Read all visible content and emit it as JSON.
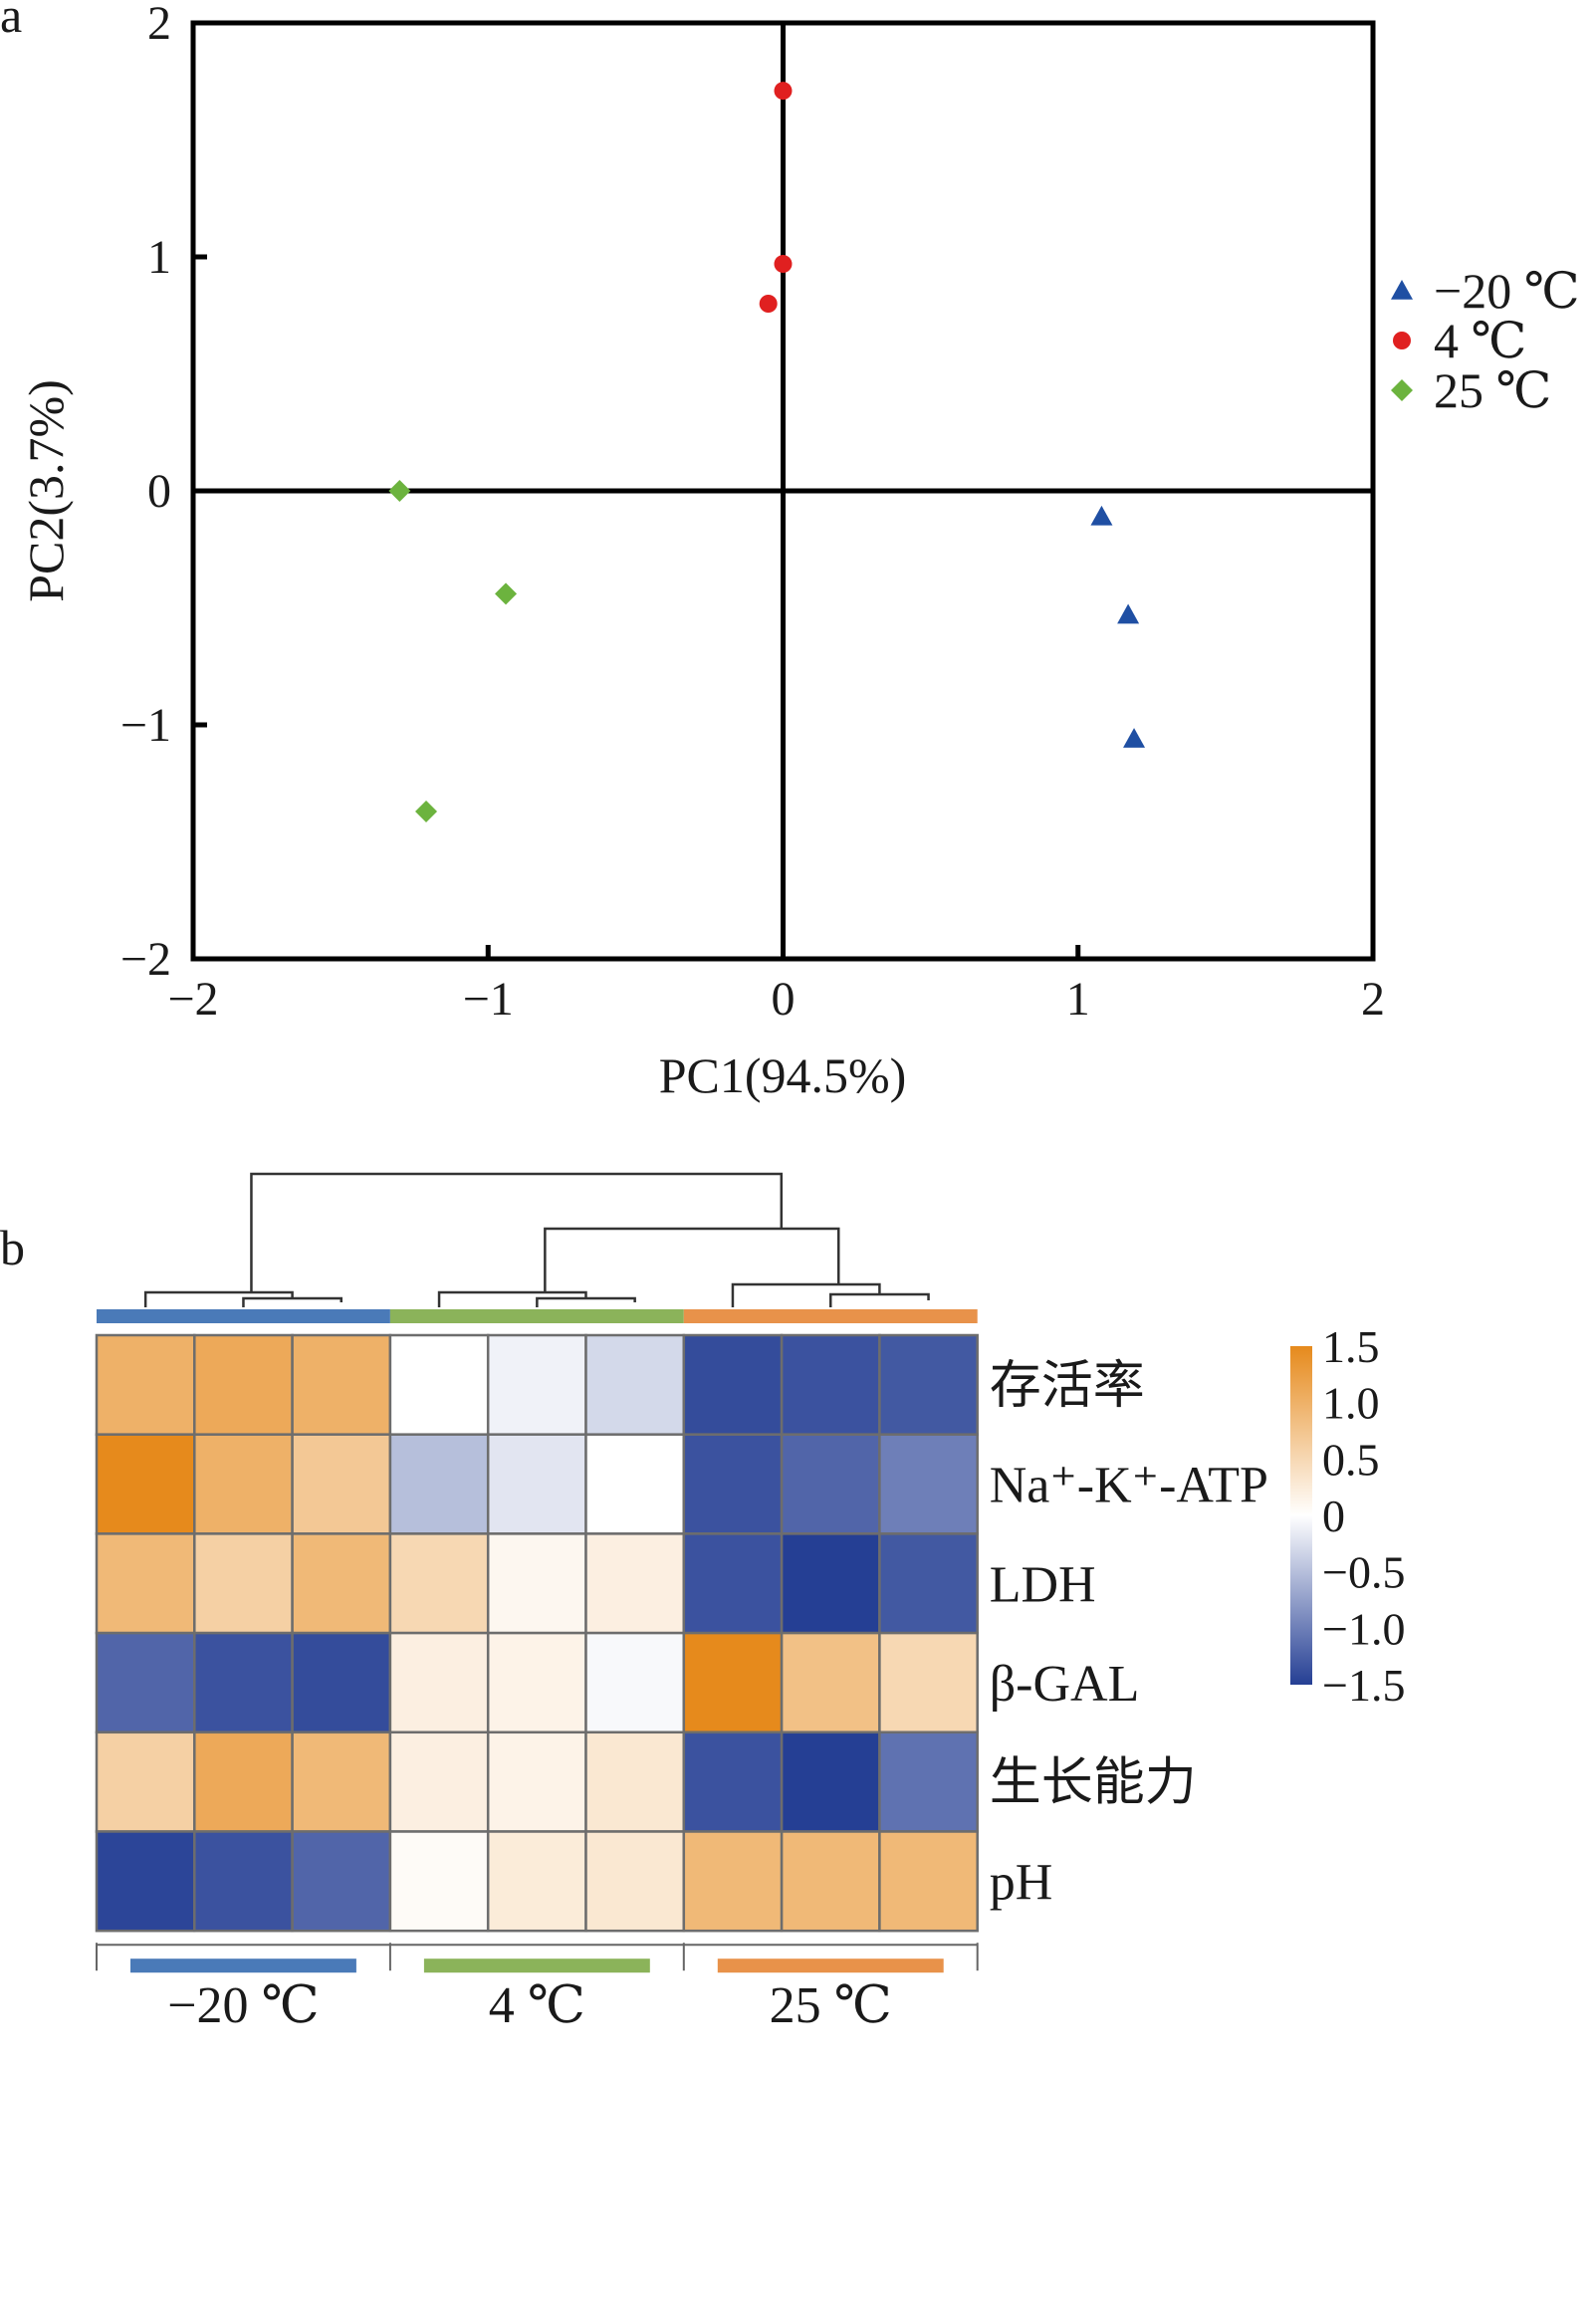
{
  "panel_a": {
    "letter": "a",
    "chart_data": {
      "type": "scatter",
      "xlabel": "PC1(94.5%)",
      "ylabel": "PC2(3.7%)",
      "xlim": [
        -2,
        2
      ],
      "ylim": [
        -2,
        2
      ],
      "x_ticks": [
        "−2",
        "−1",
        "0",
        "1",
        "2"
      ],
      "y_ticks": [
        "−2",
        "−1",
        "0",
        "1",
        "2"
      ],
      "zero_lines": true,
      "legend_position": "right",
      "series": [
        {
          "name": "−20 ℃",
          "marker": "triangle",
          "color": "#1f4fa3",
          "points": [
            [
              1.08,
              -0.11
            ],
            [
              1.17,
              -0.53
            ],
            [
              1.19,
              -1.06
            ]
          ]
        },
        {
          "name": "4 ℃",
          "marker": "circle",
          "color": "#e02020",
          "points": [
            [
              0.0,
              1.71
            ],
            [
              0.0,
              0.97
            ],
            [
              -0.05,
              0.8
            ]
          ]
        },
        {
          "name": "25 ℃",
          "marker": "diamond",
          "color": "#6cb33e",
          "points": [
            [
              -1.3,
              0.0
            ],
            [
              -0.94,
              -0.44
            ],
            [
              -1.21,
              -1.37
            ]
          ]
        }
      ]
    }
  },
  "panel_b": {
    "letter": "b",
    "chart_data": {
      "type": "heatmap",
      "rows": [
        "存活率",
        "Na⁺-K⁺-ATP",
        "LDH",
        "β-GAL",
        "生长能力",
        "pH"
      ],
      "groups": [
        {
          "label": "−20 ℃",
          "color": "#4a7ab8",
          "n": 3
        },
        {
          "label": "4 ℃",
          "color": "#8bb35a",
          "n": 3
        },
        {
          "label": "25 ℃",
          "color": "#e8924a",
          "n": 3
        }
      ],
      "values": [
        [
          1.0,
          1.1,
          1.0,
          0.0,
          -0.1,
          -0.3,
          -1.4,
          -1.35,
          -1.3
        ],
        [
          1.5,
          1.0,
          0.7,
          -0.5,
          -0.2,
          0.0,
          -1.35,
          -1.2,
          -1.0
        ],
        [
          0.9,
          0.6,
          0.9,
          0.5,
          0.1,
          0.2,
          -1.35,
          -1.5,
          -1.3
        ],
        [
          -1.2,
          -1.35,
          -1.4,
          0.2,
          0.15,
          -0.05,
          1.5,
          0.8,
          0.5
        ],
        [
          0.6,
          1.1,
          0.9,
          0.2,
          0.15,
          0.3,
          -1.35,
          -1.5,
          -1.1
        ],
        [
          -1.45,
          -1.35,
          -1.2,
          0.05,
          0.25,
          0.3,
          0.9,
          0.9,
          0.9
        ]
      ],
      "color_scale": {
        "min": -1.5,
        "max": 1.5,
        "low": "#253f94",
        "mid": "#ffffff",
        "high": "#e68a1c"
      },
      "colorbar_labels": [
        "1.5",
        "1.0",
        "0.5",
        "0",
        "−0.5",
        "−1.0",
        "−1.5"
      ],
      "column_dendrogram": true
    }
  }
}
